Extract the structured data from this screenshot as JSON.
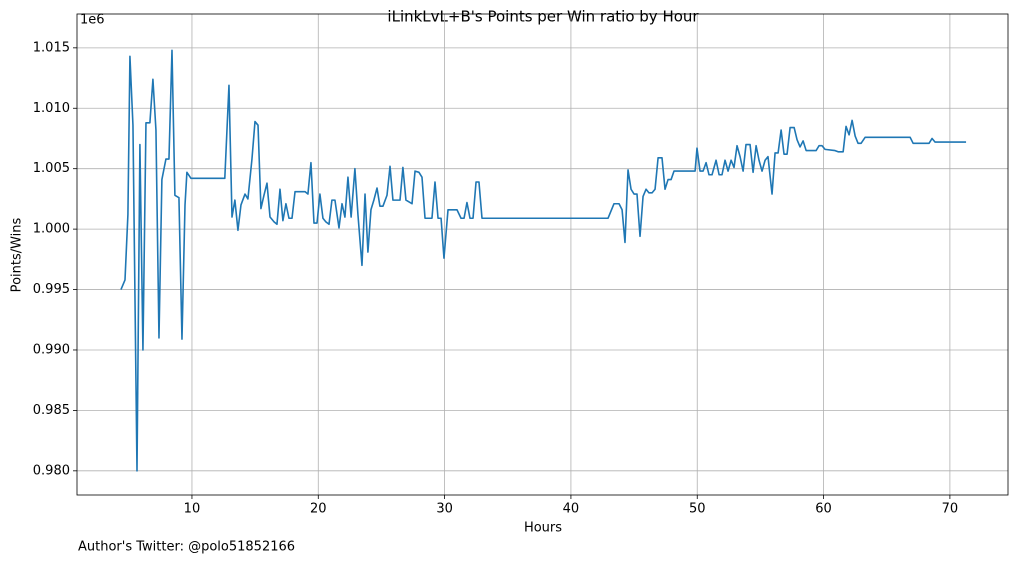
{
  "chart_data": {
    "type": "line",
    "title": "iLinkLvL+B's Points per Win ratio by Hour",
    "x_label": "Hours",
    "y_label": "Points/Wins",
    "y_offset_label": "1e6",
    "footnote": "Author's Twitter: @polo51852166",
    "grid": true,
    "xlim": [
      0.9,
      74.6
    ],
    "ylim": [
      0.978,
      1.0178
    ],
    "xticks": [
      10,
      20,
      30,
      40,
      50,
      60,
      70
    ],
    "yticks": [
      {
        "value": 0.98,
        "label": "0.980"
      },
      {
        "value": 0.985,
        "label": "0.985"
      },
      {
        "value": 0.99,
        "label": "0.990"
      },
      {
        "value": 0.995,
        "label": "0.995"
      },
      {
        "value": 1.0,
        "label": "1.000"
      },
      {
        "value": 1.005,
        "label": "1.005"
      },
      {
        "value": 1.01,
        "label": "1.010"
      },
      {
        "value": 1.015,
        "label": "1.015"
      }
    ],
    "x": [
      4.38,
      4.7,
      4.93,
      5.09,
      5.33,
      5.65,
      5.88,
      6.12,
      6.36,
      6.67,
      6.91,
      7.15,
      7.39,
      7.62,
      7.94,
      8.18,
      8.42,
      8.65,
      8.97,
      9.21,
      9.45,
      9.6,
      9.92,
      12.6,
      12.93,
      13.17,
      13.4,
      13.64,
      13.88,
      14.2,
      14.43,
      14.75,
      14.99,
      15.23,
      15.46,
      15.7,
      15.94,
      16.18,
      16.5,
      16.73,
      16.97,
      17.2,
      17.44,
      17.68,
      17.92,
      18.16,
      18.95,
      19.18,
      19.42,
      19.66,
      19.9,
      20.13,
      20.37,
      20.6,
      20.85,
      21.08,
      21.32,
      21.64,
      21.88,
      22.11,
      22.35,
      22.6,
      22.9,
      23.14,
      23.46,
      23.7,
      23.93,
      24.17,
      24.4,
      24.65,
      24.88,
      25.12,
      25.44,
      25.68,
      25.91,
      26.47,
      26.7,
      26.94,
      27.42,
      27.66,
      27.97,
      28.21,
      28.45,
      28.77,
      29.0,
      29.24,
      29.48,
      29.72,
      29.95,
      30.27,
      30.98,
      31.3,
      31.54,
      31.77,
      32.01,
      32.25,
      32.49,
      32.72,
      32.96,
      42.94,
      43.41,
      43.81,
      44.05,
      44.28,
      44.52,
      44.76,
      45.0,
      45.23,
      45.47,
      45.71,
      45.95,
      46.18,
      46.42,
      46.66,
      46.9,
      47.21,
      47.45,
      47.69,
      47.93,
      48.16,
      49.83,
      49.98,
      50.22,
      50.46,
      50.7,
      50.93,
      51.17,
      51.49,
      51.73,
      51.96,
      52.2,
      52.44,
      52.68,
      52.91,
      53.15,
      53.39,
      53.63,
      53.86,
      54.18,
      54.42,
      54.66,
      54.89,
      55.13,
      55.37,
      55.6,
      55.92,
      56.16,
      56.4,
      56.64,
      56.87,
      57.11,
      57.35,
      57.67,
      57.9,
      58.14,
      58.38,
      58.62,
      59.41,
      59.64,
      59.88,
      60.12,
      60.91,
      61.15,
      61.55,
      61.78,
      62.02,
      62.26,
      62.5,
      62.73,
      62.97,
      63.29,
      66.85,
      67.09,
      68.35,
      68.59,
      68.83,
      71.28
    ],
    "series": [
      {
        "name": "Points/Wins",
        "color": "#1f77b4",
        "values": [
          0.995,
          0.9958,
          1.0012,
          1.0143,
          1.0086,
          0.98,
          1.007,
          0.99,
          1.0088,
          1.0088,
          1.0124,
          1.0082,
          0.991,
          1.0041,
          1.0058,
          1.0058,
          1.0148,
          1.0028,
          1.0026,
          0.9909,
          1.002,
          1.0047,
          1.0042,
          1.0042,
          1.0119,
          1.001,
          1.0024,
          0.9999,
          1.002,
          1.0029,
          1.0025,
          1.0058,
          1.0089,
          1.0086,
          1.0017,
          1.0028,
          1.0038,
          1.001,
          1.0006,
          1.0004,
          1.0033,
          1.0007,
          1.0021,
          1.0009,
          1.0009,
          1.0031,
          1.0031,
          1.0029,
          1.0055,
          1.0005,
          1.0005,
          1.0029,
          1.0009,
          1.0006,
          1.0004,
          1.0024,
          1.0024,
          1.0001,
          1.0021,
          1.001,
          1.0043,
          1.001,
          1.005,
          1.0012,
          0.997,
          1.0029,
          0.9981,
          1.0016,
          1.0024,
          1.0034,
          1.0019,
          1.0019,
          1.0028,
          1.0052,
          1.0024,
          1.0024,
          1.0051,
          1.0024,
          1.0021,
          1.0048,
          1.0047,
          1.0043,
          1.0009,
          1.0009,
          1.0009,
          1.0039,
          1.0009,
          1.0009,
          0.9976,
          1.0016,
          1.0016,
          1.0009,
          1.0009,
          1.0022,
          1.0009,
          1.0009,
          1.0039,
          1.0039,
          1.0009,
          1.0009,
          1.0021,
          1.0021,
          1.0016,
          0.9989,
          1.0049,
          1.0033,
          1.0029,
          1.0029,
          0.9994,
          1.0027,
          1.0033,
          1.003,
          1.003,
          1.0033,
          1.0059,
          1.0059,
          1.0033,
          1.0041,
          1.0041,
          1.0048,
          1.0048,
          1.0067,
          1.0048,
          1.0048,
          1.0055,
          1.0045,
          1.0045,
          1.0057,
          1.0045,
          1.0045,
          1.0057,
          1.0048,
          1.0057,
          1.0051,
          1.0069,
          1.006,
          1.0048,
          1.007,
          1.007,
          1.0047,
          1.0069,
          1.0057,
          1.0048,
          1.0057,
          1.006,
          1.0029,
          1.0063,
          1.0063,
          1.0082,
          1.0062,
          1.0062,
          1.0084,
          1.0084,
          1.0074,
          1.0068,
          1.0073,
          1.0065,
          1.0065,
          1.0069,
          1.0069,
          1.0066,
          1.0065,
          1.0064,
          1.0064,
          1.0085,
          1.0078,
          1.009,
          1.0077,
          1.0071,
          1.0071,
          1.0076,
          1.0076,
          1.0071,
          1.0071,
          1.0075,
          1.0072,
          1.0072
        ]
      }
    ]
  }
}
